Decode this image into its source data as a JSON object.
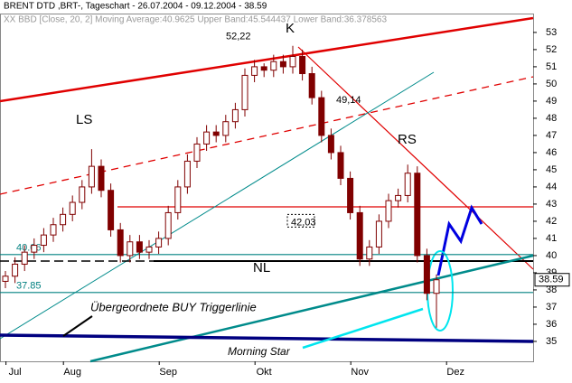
{
  "chart_data": {
    "type": "candlestick",
    "title": "BRENT DTD ,BRT-, Tageschart - 26.07.2004 - 09.12.2004 - 38.59",
    "subtitle": "XX BBD [Close, 20, 2] Moving Average:40.9625 Upper Band:45.544437 Lower Band:36.378563",
    "categories": [
      null,
      "Jul",
      null,
      null,
      null,
      null,
      null,
      "Aug",
      null,
      null,
      null,
      null,
      null,
      null,
      null,
      null,
      null,
      "Sep",
      null,
      null,
      null,
      null,
      null,
      null,
      null,
      null,
      null,
      "Okt",
      null,
      null,
      null,
      null,
      null,
      null,
      null,
      null,
      null,
      "Nov",
      null,
      null,
      null,
      null,
      null,
      null,
      null,
      null,
      null,
      "Dez",
      null,
      null,
      null,
      null,
      null,
      null,
      null
    ],
    "open": [
      38.5,
      38.8,
      39.5,
      40.2,
      40.6,
      41.2,
      41.8,
      42.4,
      43.1,
      44.0,
      45.2,
      43.8,
      41.5,
      40.0,
      40.8,
      40.2,
      40.5,
      41.0,
      42.5,
      44.0,
      45.5,
      46.5,
      47.2,
      47.0,
      47.8,
      48.5,
      50.5,
      51.0,
      50.8,
      51.3,
      51.0,
      51.6,
      50.6,
      49.2,
      47.0,
      46.0,
      44.5,
      42.5,
      39.8,
      40.5,
      42.0,
      43.2,
      43.5,
      44.8,
      40.0,
      37.8,
      null,
      null,
      null,
      null,
      null,
      null,
      null,
      null,
      null
    ],
    "high": [
      39.1,
      39.9,
      40.6,
      41.0,
      41.6,
      42.2,
      42.8,
      43.5,
      44.4,
      46.2,
      45.6,
      44.2,
      41.9,
      41.2,
      41.2,
      40.9,
      41.4,
      42.9,
      44.4,
      45.9,
      46.9,
      47.6,
      47.6,
      48.2,
      48.9,
      50.9,
      51.4,
      51.2,
      51.7,
      51.7,
      52.22,
      52.0,
      51.0,
      49.6,
      47.4,
      46.4,
      44.9,
      42.9,
      40.9,
      42.4,
      43.6,
      43.9,
      45.3,
      45.2,
      40.4,
      38.9,
      null,
      null,
      null,
      null,
      null,
      null,
      null,
      null,
      null
    ],
    "low": [
      38.1,
      38.4,
      39.1,
      39.8,
      40.2,
      40.8,
      41.4,
      42.0,
      42.7,
      43.6,
      43.4,
      41.1,
      39.6,
      39.6,
      39.8,
      39.8,
      40.1,
      40.6,
      42.1,
      43.6,
      45.1,
      46.1,
      46.6,
      46.6,
      47.4,
      48.1,
      50.1,
      50.4,
      50.4,
      50.6,
      50.6,
      50.2,
      48.8,
      46.6,
      45.6,
      44.1,
      42.1,
      39.4,
      39.4,
      40.1,
      41.6,
      42.8,
      43.1,
      39.6,
      37.4,
      35.8,
      null,
      null,
      null,
      null,
      null,
      null,
      null,
      null,
      null
    ],
    "close": [
      38.8,
      39.5,
      40.2,
      40.6,
      41.2,
      41.8,
      42.4,
      43.1,
      44.0,
      45.2,
      43.8,
      41.5,
      40.0,
      40.8,
      40.2,
      40.5,
      41.0,
      42.5,
      44.0,
      45.5,
      46.5,
      47.2,
      47.0,
      47.8,
      48.5,
      50.5,
      51.0,
      50.8,
      51.3,
      51.0,
      51.6,
      50.6,
      49.2,
      47.0,
      46.0,
      44.5,
      42.5,
      39.8,
      40.5,
      42.0,
      43.2,
      43.5,
      44.8,
      40.0,
      37.8,
      38.59,
      null,
      null,
      null,
      null,
      null,
      null,
      null,
      null,
      null
    ],
    "up_color": "#ffffff",
    "down_color": "#800000",
    "outline_color": "#800000",
    "ylim": [
      33.84,
      54.1
    ],
    "yticks": [
      35,
      36,
      37,
      38,
      39,
      40,
      41,
      42,
      43,
      44,
      45,
      46,
      47,
      48,
      49,
      50,
      51,
      52,
      53
    ],
    "last_price": 38.59,
    "levels": [
      {
        "value": 40.06,
        "color": "#008080"
      },
      {
        "value": 37.85,
        "color": "#008080"
      }
    ],
    "price_labels": [
      {
        "value": 52.22,
        "label": "52,22"
      },
      {
        "value": 49.14,
        "label": "49,14"
      },
      {
        "value": 42.03,
        "label": "42,03"
      }
    ],
    "annotations": {
      "ls": "LS",
      "k": "K",
      "rs": "RS",
      "nl": "NL",
      "trigger": "Übergeordnete BUY Triggerlinie",
      "morning_star": "Morning Star"
    }
  }
}
